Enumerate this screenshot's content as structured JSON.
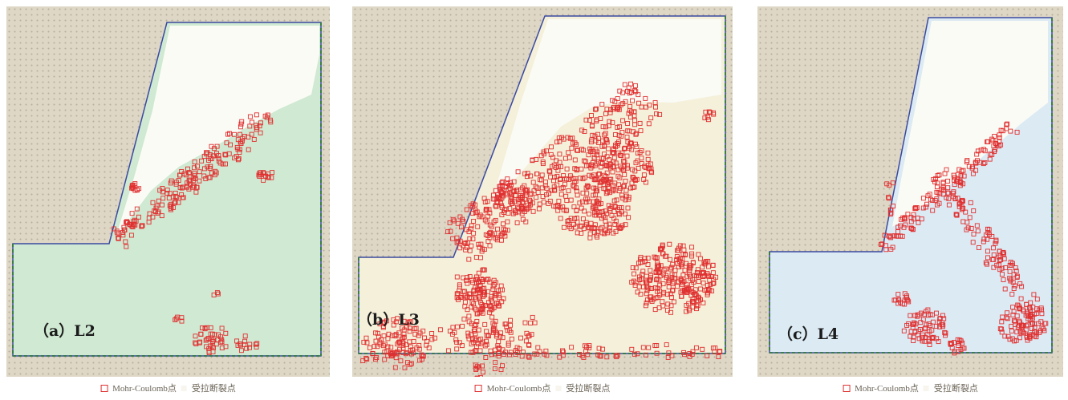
{
  "panels": [
    {
      "id": "a",
      "label": "（a）L2"
    },
    {
      "id": "b",
      "label": "（b）L3"
    },
    {
      "id": "c",
      "label": "（c）L4"
    }
  ],
  "legend": {
    "mohr_coulomb": "Mohr-Coulomb点",
    "tensile_failure": "受拉断裂点"
  },
  "colors": {
    "background": "#ded7c6",
    "panel_a_fill": "#cfe9d2",
    "panel_b_fill": "#f4f0da",
    "panel_c_fill": "#dceaf3",
    "failure_marker": "#e03030",
    "outline": "#3a4aa0",
    "tensile_zone": "#fbfbf6"
  }
}
